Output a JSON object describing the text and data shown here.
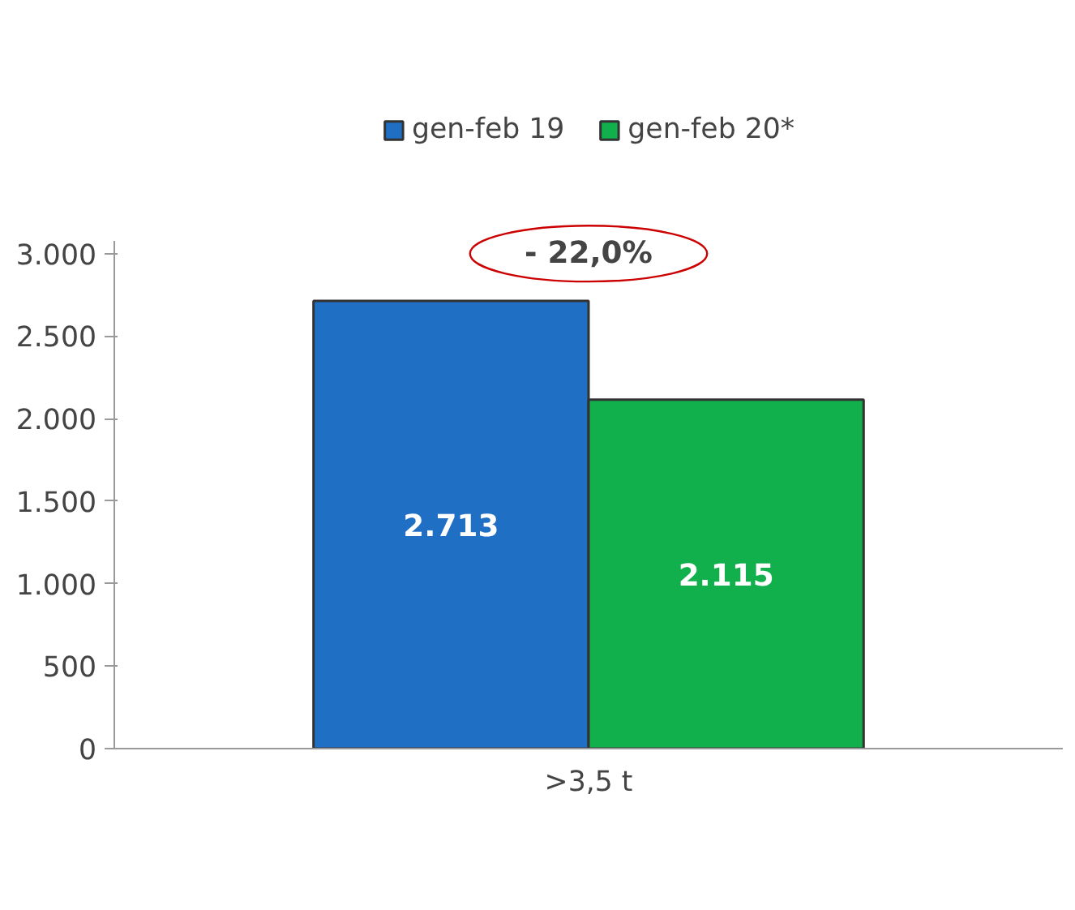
{
  "chart_data": {
    "type": "bar",
    "categories": [
      ">3,5 t"
    ],
    "series": [
      {
        "name": "gen-feb 19",
        "color": "#1f6fc5",
        "values": [
          2713
        ],
        "value_labels": [
          "2.713"
        ]
      },
      {
        "name": "gen-feb 20*",
        "color": "#12b04c",
        "values": [
          2115
        ],
        "value_labels": [
          "2.115"
        ]
      }
    ],
    "ylim": [
      0,
      3080
    ],
    "yticks": [
      {
        "value": 0,
        "label": "0"
      },
      {
        "value": 500,
        "label": "500"
      },
      {
        "value": 1000,
        "label": "1.000"
      },
      {
        "value": 1500,
        "label": "1.500"
      },
      {
        "value": 2000,
        "label": "2.000"
      },
      {
        "value": 2500,
        "label": "2.500"
      },
      {
        "value": 3000,
        "label": "3.000"
      }
    ],
    "annotations": [
      "- 22,0%"
    ],
    "legend": "top",
    "grid": false
  }
}
